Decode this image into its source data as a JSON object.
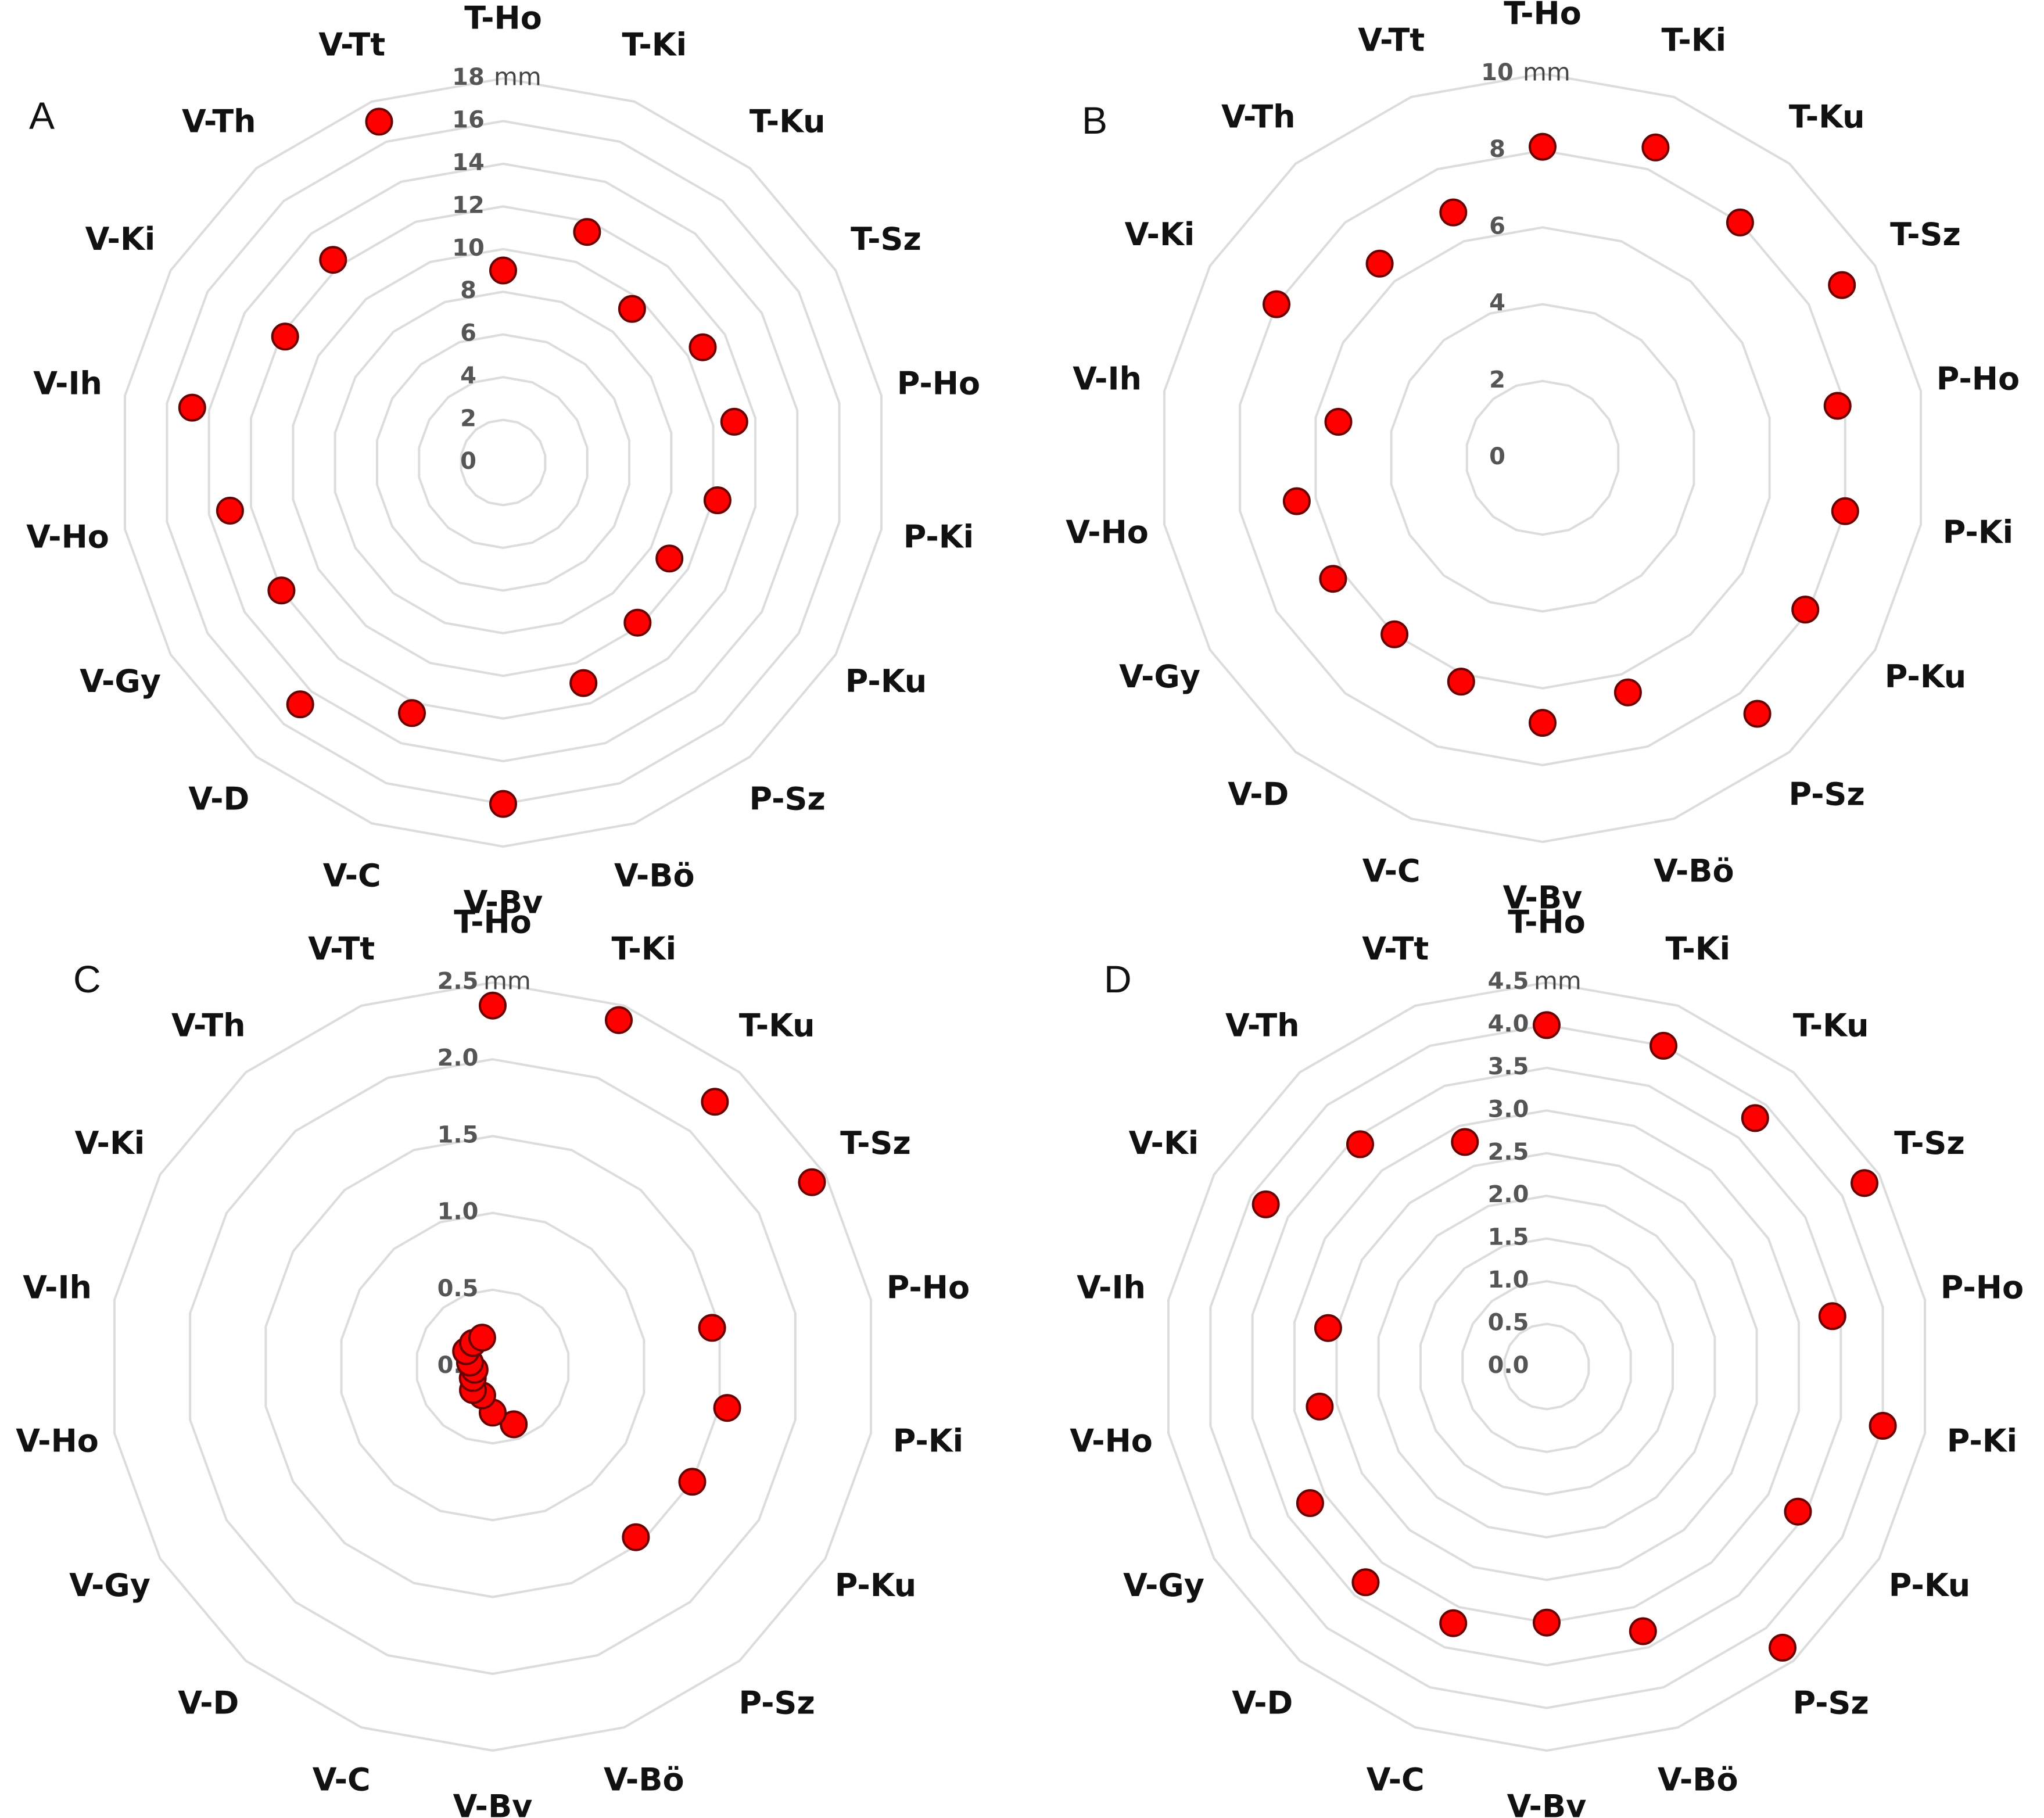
{
  "colors": {
    "point_fill": "#ff0000",
    "point_stroke": "#6b0000",
    "grid": "#dcdcdc",
    "label": "#111111",
    "tick": "#555555"
  },
  "chart_data": [
    {
      "panel": "A",
      "type": "radar",
      "categories": [
        "T-Ho",
        "T-Ki",
        "T-Ku",
        "T-Sz",
        "P-Ho",
        "P-Ki",
        "P-Ku",
        "P-Sz",
        "V-Bö",
        "V-Bv",
        "V-C",
        "V-D",
        "V-Gy",
        "V-Ho",
        "V-Ih",
        "V-Ki",
        "V-Th",
        "V-Tt"
      ],
      "unit": "mm",
      "range": [
        0,
        18
      ],
      "ticks": [
        "0",
        "2",
        "4",
        "6",
        "8",
        "10",
        "12",
        "14",
        "16",
        "18"
      ],
      "values": [
        9.0,
        11.5,
        9.4,
        10.8,
        11.0,
        10.2,
        9.0,
        9.8,
        11.0,
        16.0,
        12.5,
        14.8,
        12.0,
        13.0,
        14.8,
        11.8,
        12.4,
        17.0
      ],
      "grid": true
    },
    {
      "panel": "B",
      "type": "radar",
      "categories": [
        "T-Ho",
        "T-Ki",
        "T-Ku",
        "T-Sz",
        "P-Ho",
        "P-Ki",
        "P-Ku",
        "P-Sz",
        "V-Bö",
        "V-Bv",
        "V-C",
        "V-D",
        "V-Gy",
        "V-Ho",
        "V-Ih",
        "V-Ki",
        "V-Th",
        "V-Tt"
      ],
      "unit": "mm",
      "range": [
        0,
        10
      ],
      "ticks": [
        "0",
        "2",
        "4",
        "6",
        "8",
        "10"
      ],
      "values": [
        8.1,
        8.6,
        8.0,
        9.0,
        7.8,
        8.0,
        7.9,
        8.7,
        6.5,
        6.9,
        6.2,
        6.0,
        6.3,
        6.5,
        5.4,
        8.0,
        6.6,
        6.8
      ],
      "grid": true
    },
    {
      "panel": "C",
      "type": "radar",
      "categories": [
        "T-Ho",
        "T-Ki",
        "T-Ku",
        "T-Sz",
        "P-Ho",
        "P-Ki",
        "P-Ku",
        "P-Sz",
        "V-Bö",
        "V-Bv",
        "V-C",
        "V-D",
        "V-Gy",
        "V-Ho",
        "V-Ih",
        "V-Ki",
        "V-Th",
        "V-Tt"
      ],
      "unit": "mm",
      "range": [
        0,
        2.5
      ],
      "ticks": [
        "0.0",
        "0.5",
        "1.0",
        "1.5",
        "2.0",
        "2.5"
      ],
      "values": [
        2.35,
        2.4,
        2.25,
        2.4,
        1.45,
        1.55,
        1.5,
        1.45,
        0.4,
        0.3,
        0.2,
        0.2,
        0.15,
        0.12,
        0.15,
        0.2,
        0.2,
        0.2
      ],
      "grid": true
    },
    {
      "panel": "D",
      "type": "radar",
      "categories": [
        "T-Ho",
        "T-Ki",
        "T-Ku",
        "T-Sz",
        "P-Ho",
        "P-Ki",
        "P-Ku",
        "P-Sz",
        "V-Bö",
        "V-Bv",
        "V-C",
        "V-D",
        "V-Gy",
        "V-Ho",
        "V-Ih",
        "V-Ki",
        "V-Th",
        "V-Tt"
      ],
      "unit": "mm",
      "range": [
        0,
        4.5
      ],
      "ticks": [
        "0.0",
        "0.5",
        "1.0",
        "1.5",
        "2.0",
        "2.5",
        "3.0",
        "3.5",
        "4.0",
        "4.5"
      ],
      "values": [
        4.0,
        4.0,
        3.8,
        4.3,
        3.4,
        4.0,
        3.4,
        4.3,
        3.3,
        3.0,
        3.2,
        3.3,
        3.2,
        2.7,
        2.6,
        3.8,
        3.4,
        2.8
      ],
      "grid": true
    }
  ]
}
